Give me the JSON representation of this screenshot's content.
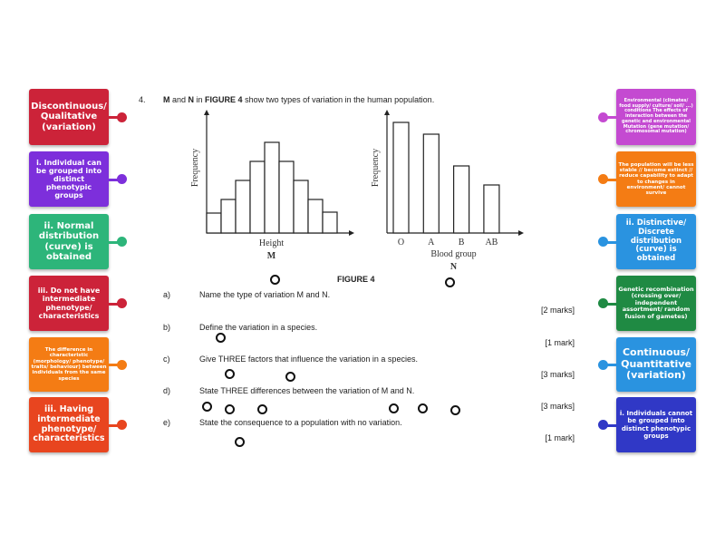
{
  "left_cards": [
    {
      "text": "Discontinuous/ Qualitative (variation)",
      "color": "#cc2339",
      "size": 10
    },
    {
      "text": "i. Individual can be grouped into distinct phenotypic groups",
      "color": "#7d2fdb",
      "size": 8
    },
    {
      "text": "ii. Normal distribution (curve) is obtained",
      "color": "#2db57a",
      "size": 10
    },
    {
      "text": "iii. Do not have intermediate phenotype/ characteristics",
      "color": "#cc2339",
      "size": 8
    },
    {
      "text": "The difference in characteristic (morphology/ phenotype/ traits/ behaviour) between individuals from the same species",
      "color": "#f47c14",
      "size": 5.5
    },
    {
      "text": "iii. Having intermediate phenotype/ characteristics",
      "color": "#e8451f",
      "size": 9.5
    }
  ],
  "right_cards": [
    {
      "text": "Environmental (climates/ food supply/ culture/ soil/ ...) conditions The effects of interaction between the genetic and environmental Mutation (gene mutation/ chromosomal mutation)",
      "color": "#c44ad1",
      "size": 5
    },
    {
      "text": "The population will be less stable // become extinct // reduce capability to adapt to changes in environment/ cannot survive",
      "color": "#f47c14",
      "size": 5.5
    },
    {
      "text": "ii. Distinctive/ Discrete distribution (curve) is obtained",
      "color": "#2a93e0",
      "size": 8.5
    },
    {
      "text": "Genetic recombination (crossing over/ independent assortment/ random fusion of gametes)",
      "color": "#1f8a43",
      "size": 6.5
    },
    {
      "text": "Continuous/ Quantitative (variation)",
      "color": "#2a93e0",
      "size": 11
    },
    {
      "text": "i. Individuals cannot be grouped into distinct phenotypic groups",
      "color": "#3038c6",
      "size": 7
    }
  ],
  "question": {
    "number": "4.",
    "stem_parts": [
      "M",
      " and ",
      "N",
      " in ",
      "FIGURE 4",
      " show two types of variation in the human population."
    ],
    "figure_label": "FIGURE 4",
    "parts": [
      {
        "label": "a)",
        "text": "Name the type of variation M and N.",
        "marks": "[2 marks]"
      },
      {
        "label": "b)",
        "text": "Define the variation in a species.",
        "marks": "[1 mark]"
      },
      {
        "label": "c)",
        "text": "Give THREE factors that influence the variation in a species.",
        "marks": "[3 marks]"
      },
      {
        "label": "d)",
        "text": "State THREE differences between the variation of M and N.",
        "marks": "[3 marks]"
      },
      {
        "label": "e)",
        "text": "State the consequence to a population with no variation.",
        "marks": "[1 mark]"
      }
    ]
  },
  "chart_data": [
    {
      "type": "bar",
      "title": "M",
      "xlabel": "Height",
      "ylabel": "Frequency",
      "categories": [
        "",
        "",
        "",
        "",
        "",
        "",
        "",
        "",
        ""
      ],
      "values": [
        22,
        37,
        58,
        79,
        100,
        79,
        58,
        37,
        23
      ]
    },
    {
      "type": "bar",
      "title": "N",
      "xlabel": "Blood group",
      "ylabel": "Frequency",
      "categories": [
        "O",
        "A",
        "B",
        "AB"
      ],
      "values": [
        122,
        109,
        74,
        53
      ]
    }
  ]
}
